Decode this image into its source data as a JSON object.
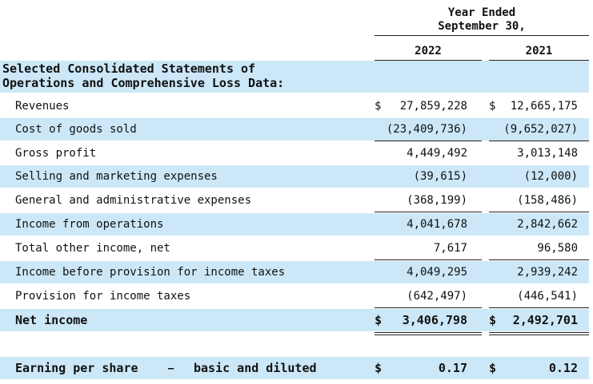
{
  "header": {
    "period_line1": "Year Ended",
    "period_line2": "September 30,",
    "year_2022": "2022",
    "year_2021": "2021"
  },
  "section": {
    "title_line1": "Selected Consolidated Statements of",
    "title_line2": "Operations and Comprehensive Loss  Data:"
  },
  "rows": [
    {
      "label": "Revenues",
      "c1_prefix": "$",
      "c1": "27,859,228",
      "c2_prefix": "$",
      "c2": "12,665,175"
    },
    {
      "label": "Cost of goods sold",
      "c1": "(23,409,736)",
      "c2": "(9,652,027)"
    },
    {
      "label": "Gross profit",
      "c1": "4,449,492",
      "c2": "3,013,148"
    },
    {
      "label": "Selling and marketing expenses",
      "c1": "(39,615)",
      "c2": "(12,000)"
    },
    {
      "label": "General and administrative expenses",
      "c1": "(368,199)",
      "c2": "(158,486)"
    },
    {
      "label": "Income from operations",
      "c1": "4,041,678",
      "c2": "2,842,662"
    },
    {
      "label": "Total other income, net",
      "c1": "7,617",
      "c2": "96,580"
    },
    {
      "label": "Income before provision for income taxes",
      "c1": "4,049,295",
      "c2": "2,939,242"
    },
    {
      "label": "Provision for income taxes",
      "c1": "(642,497)",
      "c2": "(446,541)"
    },
    {
      "label": "Net income",
      "c1_prefix": "$",
      "c1": "3,406,798",
      "c2_prefix": "$",
      "c2": "2,492,701"
    }
  ],
  "eps": {
    "label_part1": "Earning per share",
    "dash": "–",
    "label_part2": "basic and diluted",
    "c1_prefix": "$",
    "c1": "0.17",
    "c2_prefix": "$",
    "c2": "0.12"
  }
}
